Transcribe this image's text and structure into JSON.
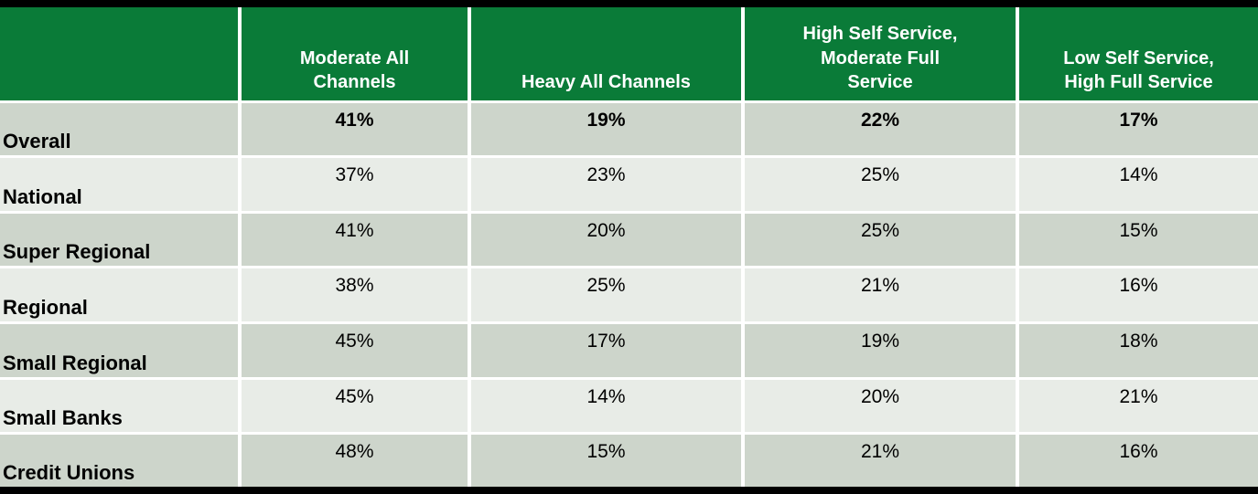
{
  "colors": {
    "header_green": "#0A7B38",
    "high_green": "#C5E46F",
    "low_red": "#FB3B3B",
    "neutral_gray": "#D6D6D6",
    "row_alt_dark": "#CDD5CB",
    "row_alt_light": "#E8ECE7",
    "header_text": "#FFFFFF",
    "body_text": "#000000",
    "frame_black": "#000000"
  },
  "chart_data": {
    "type": "table",
    "corner": "",
    "columns": [
      "Moderate All\nChannels",
      "Heavy All Channels",
      "High Self Service,\nModerate Full\nService",
      "Low Self Service,\nHigh Full Service"
    ],
    "legend_hint": "cell tones: high=green, low=red, neutral=gray, default=row stripe",
    "rows": [
      {
        "label": "Overall",
        "bold": true,
        "cells": [
          {
            "value": "41%",
            "tone": "default"
          },
          {
            "value": "19%",
            "tone": "default"
          },
          {
            "value": "22%",
            "tone": "default"
          },
          {
            "value": "17%",
            "tone": "default"
          }
        ]
      },
      {
        "label": "National",
        "bold": false,
        "cells": [
          {
            "value": "37%",
            "tone": "low"
          },
          {
            "value": "23%",
            "tone": "high"
          },
          {
            "value": "25%",
            "tone": "high"
          },
          {
            "value": "14%",
            "tone": "low"
          }
        ]
      },
      {
        "label": "Super Regional",
        "bold": false,
        "cells": [
          {
            "value": "41%",
            "tone": "default"
          },
          {
            "value": "20%",
            "tone": "neutral"
          },
          {
            "value": "25%",
            "tone": "high"
          },
          {
            "value": "15%",
            "tone": "default"
          }
        ]
      },
      {
        "label": "Regional",
        "bold": false,
        "cells": [
          {
            "value": "38%",
            "tone": "default"
          },
          {
            "value": "25%",
            "tone": "high"
          },
          {
            "value": "21%",
            "tone": "default"
          },
          {
            "value": "16%",
            "tone": "default"
          }
        ]
      },
      {
        "label": "Small Regional",
        "bold": false,
        "cells": [
          {
            "value": "45%",
            "tone": "high"
          },
          {
            "value": "17%",
            "tone": "default"
          },
          {
            "value": "19%",
            "tone": "default"
          },
          {
            "value": "18%",
            "tone": "default"
          }
        ]
      },
      {
        "label": "Small Banks",
        "bold": false,
        "cells": [
          {
            "value": "45%",
            "tone": "high"
          },
          {
            "value": "14%",
            "tone": "low"
          },
          {
            "value": "20%",
            "tone": "default"
          },
          {
            "value": "21%",
            "tone": "high"
          }
        ]
      },
      {
        "label": "Credit Unions",
        "bold": false,
        "cells": [
          {
            "value": "48%",
            "tone": "high"
          },
          {
            "value": "15%",
            "tone": "low"
          },
          {
            "value": "21%",
            "tone": "default"
          },
          {
            "value": "16%",
            "tone": "default"
          }
        ]
      }
    ]
  }
}
